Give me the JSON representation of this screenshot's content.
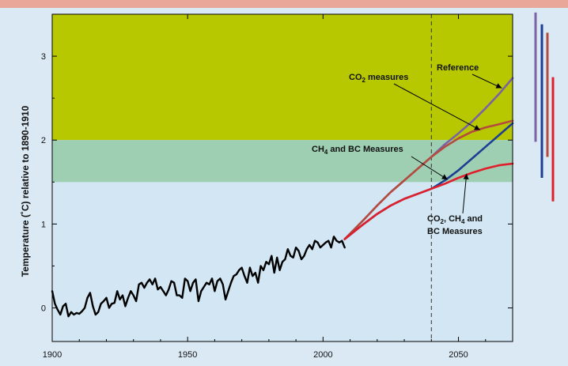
{
  "chart_data": {
    "type": "line",
    "title": "",
    "xlabel": "",
    "ylabel": "Temperature (˚C) relative to 1890-1910",
    "xlim": [
      1900,
      2070
    ],
    "ylim": [
      -0.4,
      3.5
    ],
    "x_ticks": [
      "1900",
      "1950",
      "2000",
      "2050"
    ],
    "y_ticks": [
      "0",
      "1",
      "2",
      "3"
    ],
    "x_tick_values": [
      1900,
      1950,
      2000,
      2050
    ],
    "y_tick_values": [
      0,
      1,
      2,
      3
    ],
    "grid": false,
    "shaded_bands": [
      {
        "from": 2.0,
        "to": 3.5,
        "color": "#b7c800"
      },
      {
        "from": 1.5,
        "to": 2.0,
        "color": "#9ecfb3"
      }
    ],
    "reference_line_x": 2040,
    "series": [
      {
        "name": "",
        "color": "#000000",
        "x": [
          1900,
          1901,
          1902,
          1903,
          1904,
          1905,
          1906,
          1907,
          1908,
          1909,
          1910,
          1911,
          1912,
          1913,
          1914,
          1915,
          1916,
          1917,
          1918,
          1919,
          1920,
          1921,
          1922,
          1923,
          1924,
          1925,
          1926,
          1927,
          1928,
          1929,
          1930,
          1931,
          1932,
          1933,
          1934,
          1935,
          1936,
          1937,
          1938,
          1939,
          1940,
          1941,
          1942,
          1943,
          1944,
          1945,
          1946,
          1947,
          1948,
          1949,
          1950,
          1951,
          1952,
          1953,
          1954,
          1955,
          1956,
          1957,
          1958,
          1959,
          1960,
          1961,
          1962,
          1963,
          1964,
          1965,
          1966,
          1967,
          1968,
          1969,
          1970,
          1971,
          1972,
          1973,
          1974,
          1975,
          1976,
          1977,
          1978,
          1979,
          1980,
          1981,
          1982,
          1983,
          1984,
          1985,
          1986,
          1987,
          1988,
          1989,
          1990,
          1991,
          1992,
          1993,
          1994,
          1995,
          1996,
          1997,
          1998,
          1999,
          2000,
          2001,
          2002,
          2003,
          2004,
          2005,
          2006,
          2007,
          2008
        ],
        "values": [
          0.2,
          0.05,
          -0.02,
          -0.08,
          0.02,
          0.05,
          -0.1,
          -0.05,
          -0.08,
          -0.06,
          -0.07,
          -0.04,
          0.0,
          0.12,
          0.18,
          0.02,
          -0.08,
          -0.05,
          0.05,
          0.08,
          0.12,
          0.0,
          0.05,
          0.06,
          0.2,
          0.1,
          0.15,
          0.02,
          0.12,
          0.2,
          0.15,
          0.08,
          0.28,
          0.3,
          0.24,
          0.3,
          0.34,
          0.28,
          0.35,
          0.22,
          0.25,
          0.2,
          0.15,
          0.22,
          0.32,
          0.3,
          0.15,
          0.15,
          0.12,
          0.35,
          0.32,
          0.2,
          0.3,
          0.34,
          0.08,
          0.2,
          0.25,
          0.3,
          0.28,
          0.35,
          0.2,
          0.32,
          0.35,
          0.28,
          0.1,
          0.2,
          0.3,
          0.38,
          0.4,
          0.45,
          0.48,
          0.38,
          0.3,
          0.48,
          0.38,
          0.42,
          0.3,
          0.5,
          0.45,
          0.55,
          0.52,
          0.62,
          0.42,
          0.6,
          0.45,
          0.55,
          0.58,
          0.7,
          0.62,
          0.6,
          0.72,
          0.68,
          0.58,
          0.62,
          0.7,
          0.75,
          0.7,
          0.8,
          0.78,
          0.72,
          0.75,
          0.78,
          0.8,
          0.72,
          0.85,
          0.8,
          0.78,
          0.8,
          0.72
        ]
      },
      {
        "name": "Reference",
        "color": "#7b62a3",
        "x": [
          2008,
          2015,
          2020,
          2025,
          2030,
          2035,
          2040,
          2045,
          2050,
          2055,
          2060,
          2065,
          2070
        ],
        "values": [
          0.82,
          1.05,
          1.22,
          1.38,
          1.52,
          1.66,
          1.8,
          1.95,
          2.08,
          2.22,
          2.38,
          2.55,
          2.74
        ]
      },
      {
        "name": "CO2 measures",
        "color": "#b54a3e",
        "x": [
          2008,
          2015,
          2020,
          2025,
          2030,
          2035,
          2040,
          2045,
          2050,
          2055,
          2060,
          2065,
          2070
        ],
        "values": [
          0.82,
          1.05,
          1.22,
          1.38,
          1.52,
          1.66,
          1.8,
          1.92,
          2.02,
          2.1,
          2.15,
          2.19,
          2.23
        ]
      },
      {
        "name": "CH4 and BC Measures",
        "color": "#1d3f93",
        "x": [
          2008,
          2015,
          2020,
          2025,
          2030,
          2035,
          2040,
          2045,
          2050,
          2055,
          2060,
          2065,
          2070
        ],
        "values": [
          0.82,
          1.0,
          1.12,
          1.22,
          1.3,
          1.36,
          1.42,
          1.52,
          1.64,
          1.78,
          1.92,
          2.06,
          2.2
        ]
      },
      {
        "name": "CO2, CH4 and BC Measures",
        "color": "#e11e2b",
        "x": [
          2008,
          2015,
          2020,
          2025,
          2030,
          2035,
          2040,
          2045,
          2050,
          2055,
          2060,
          2065,
          2070
        ],
        "values": [
          0.82,
          1.0,
          1.12,
          1.22,
          1.3,
          1.36,
          1.42,
          1.48,
          1.55,
          1.61,
          1.66,
          1.7,
          1.72
        ]
      }
    ],
    "annotations": [
      {
        "text": "Reference",
        "points_to_series": "Reference"
      },
      {
        "text": "CO2 measures",
        "points_to_series": "CO2 measures"
      },
      {
        "text": "CH4 and BC Measures",
        "points_to_series": "CH4 and BC Measures"
      },
      {
        "text": "CO2, CH4 and BC Measures",
        "points_to_series": "CO2, CH4 and BC Measures"
      }
    ],
    "side_ranges": [
      {
        "series": "Reference",
        "color": "#7b62a3",
        "from": 1.98,
        "to": 3.52
      },
      {
        "series": "CH4 and BC Measures",
        "color": "#1d3f93",
        "from": 1.55,
        "to": 3.38
      },
      {
        "series": "CO2 measures",
        "color": "#b54a3e",
        "from": 1.8,
        "to": 3.28
      },
      {
        "series": "CO2, CH4 and BC Measures",
        "color": "#e11e2b",
        "from": 1.27,
        "to": 2.75
      }
    ]
  },
  "labels": {
    "reference": "Reference",
    "co2_main": "CO",
    "co2_sub": "2",
    "co2_rest": " measures",
    "ch4_main": "CH",
    "ch4_sub": "4",
    "ch4_rest": " and BC Measures",
    "combo_line1_a": "CO",
    "combo_line1_sub1": "2",
    "combo_line1_b": ", CH",
    "combo_line1_sub2": "4",
    "combo_line1_c": " and",
    "combo_line2": "BC Measures"
  }
}
